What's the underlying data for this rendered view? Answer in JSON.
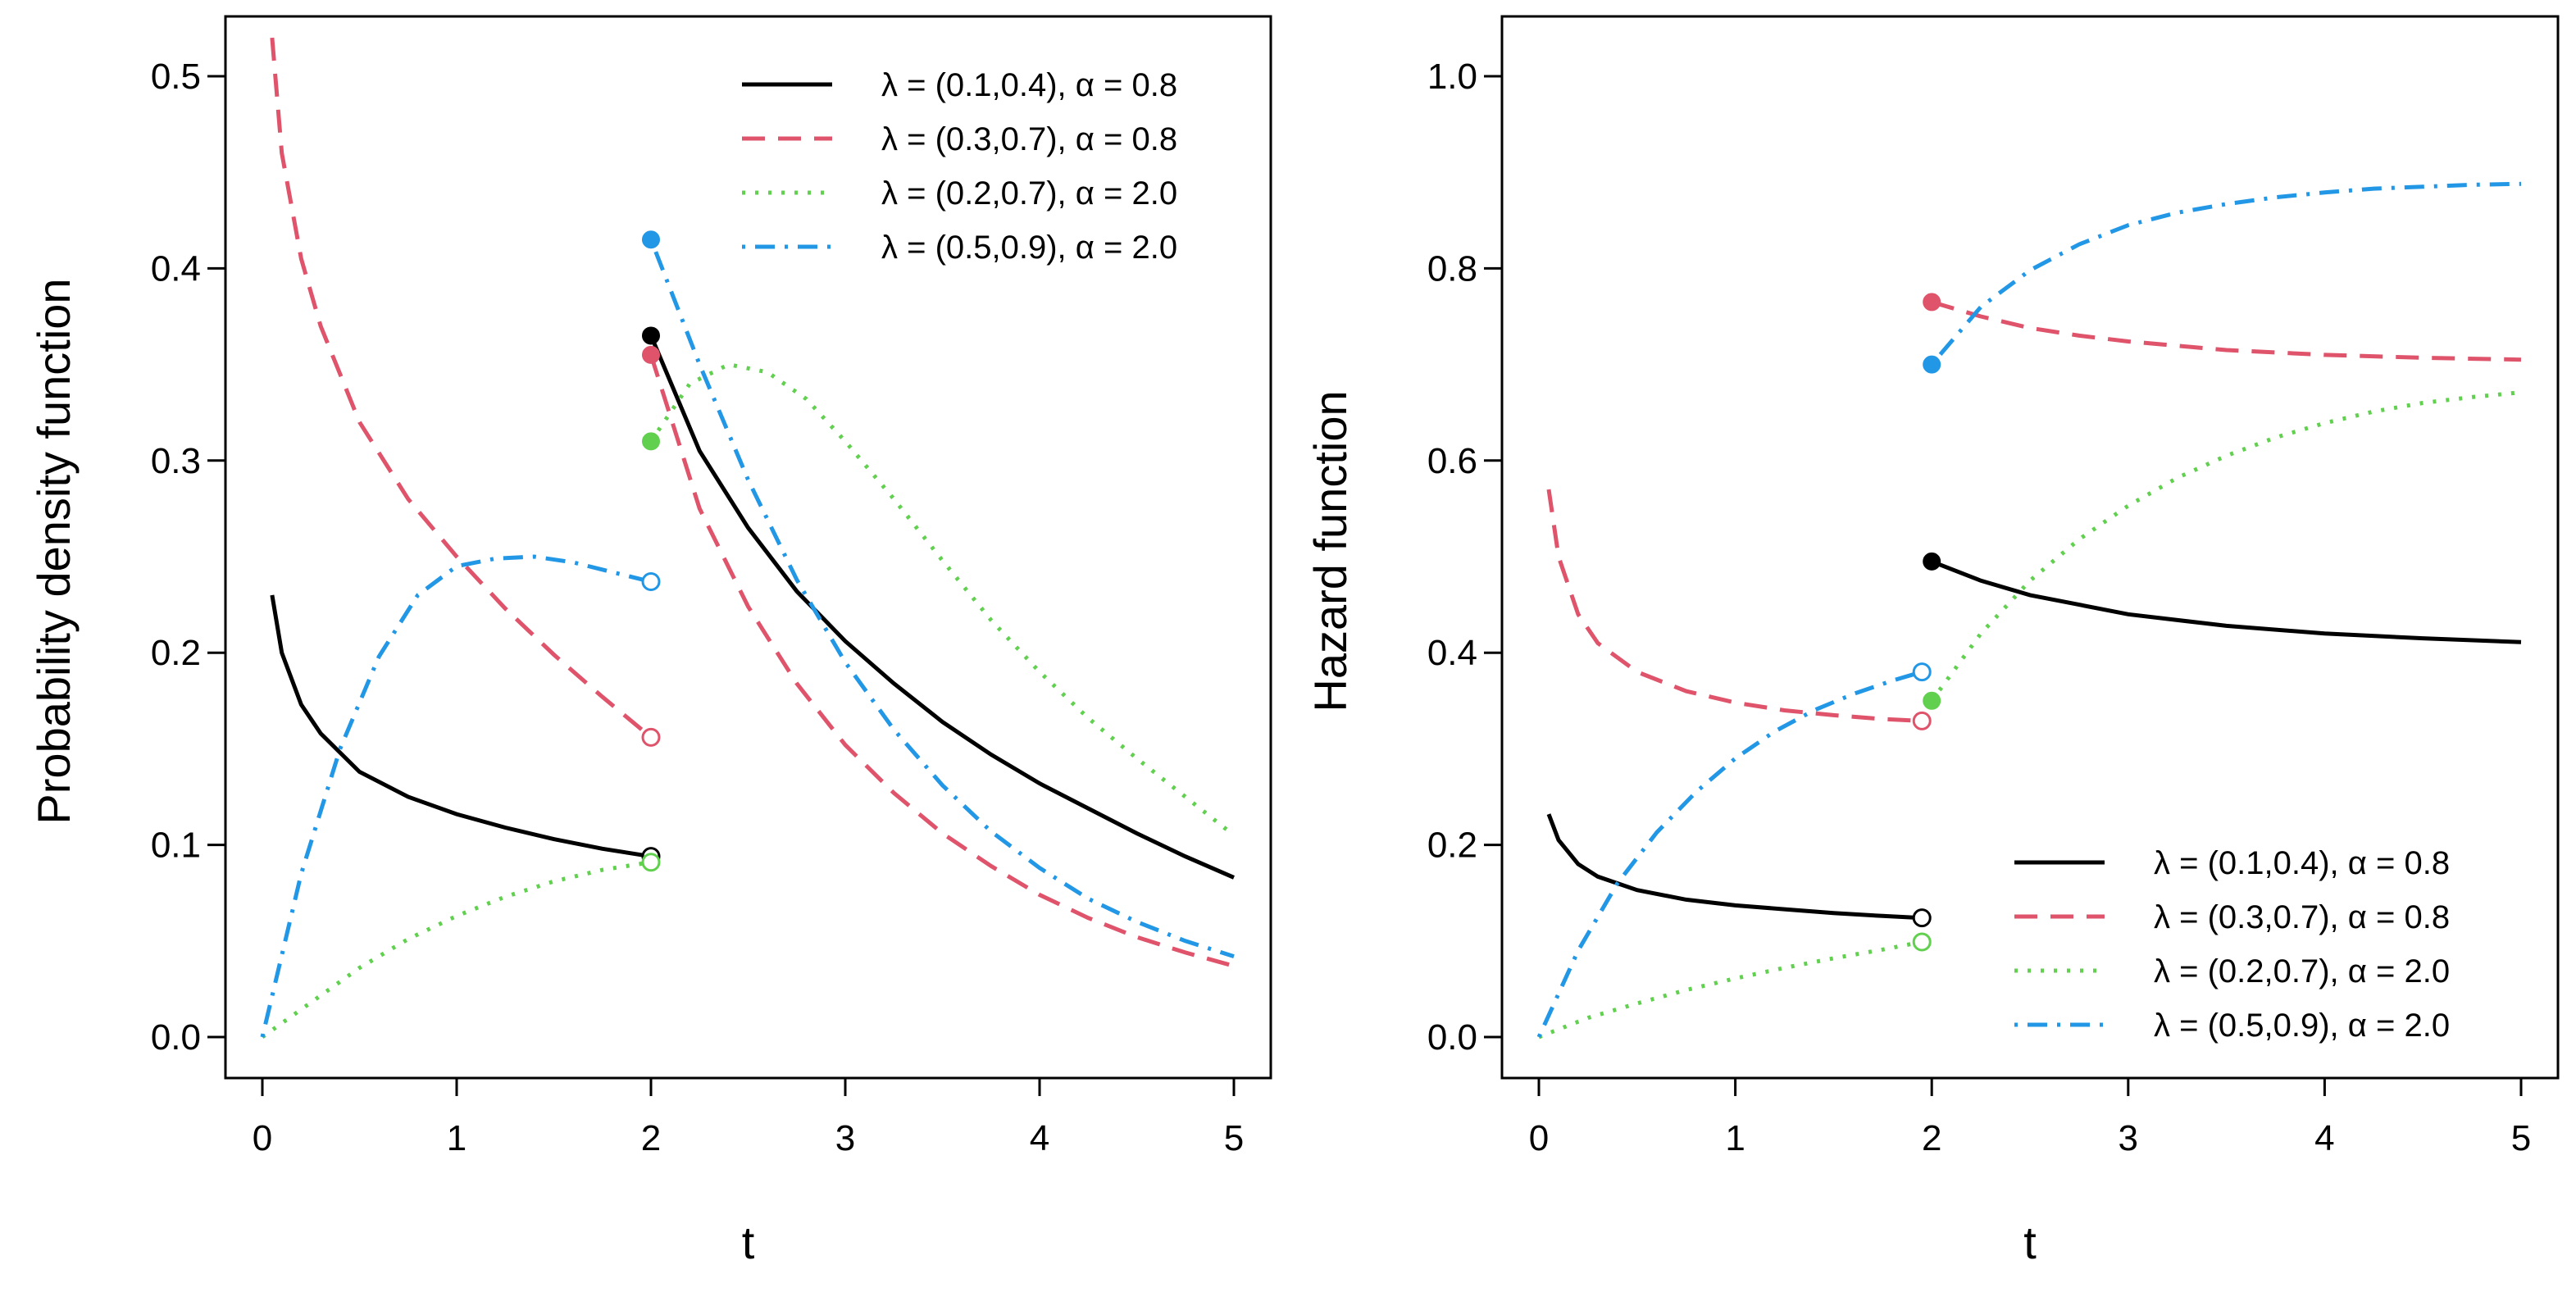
{
  "chart_data": [
    {
      "type": "line",
      "xlabel": "t",
      "ylabel": "Probability density function",
      "xlim": [
        0,
        5
      ],
      "ylim": [
        0,
        0.52
      ],
      "xticks": [
        0,
        1,
        2,
        3,
        4,
        5
      ],
      "yticks": [
        0.0,
        0.1,
        0.2,
        0.3,
        0.4,
        0.5
      ],
      "ytick_labels": [
        "0.0",
        "0.1",
        "0.2",
        "0.3",
        "0.4",
        "0.5"
      ],
      "grid": false,
      "legend_position": "top-right",
      "change_point": 2,
      "series": [
        {
          "name": "λ = (0.1,0.4), α = 0.8",
          "color": "#000000",
          "dash": "solid",
          "segments": [
            {
              "x": [
                0.05,
                0.1,
                0.2,
                0.3,
                0.5,
                0.75,
                1.0,
                1.25,
                1.5,
                1.75,
                2.0
              ],
              "y": [
                0.23,
                0.2,
                0.173,
                0.158,
                0.138,
                0.125,
                0.116,
                0.109,
                0.103,
                0.098,
                0.094
              ]
            },
            {
              "x": [
                2.0,
                2.25,
                2.5,
                2.75,
                3.0,
                3.25,
                3.5,
                3.75,
                4.0,
                4.25,
                4.5,
                4.75,
                5.0
              ],
              "y": [
                0.365,
                0.305,
                0.265,
                0.232,
                0.206,
                0.184,
                0.164,
                0.147,
                0.132,
                0.119,
                0.106,
                0.094,
                0.083
              ]
            }
          ],
          "open_point": [
            2.0,
            0.094
          ],
          "filled_point": [
            2.0,
            0.365
          ]
        },
        {
          "name": "λ = (0.3,0.7), α = 0.8",
          "color": "#df536b",
          "dash": "dashed",
          "segments": [
            {
              "x": [
                0.05,
                0.1,
                0.2,
                0.3,
                0.5,
                0.75,
                1.0,
                1.25,
                1.5,
                1.75,
                2.0
              ],
              "y": [
                0.52,
                0.46,
                0.405,
                0.37,
                0.32,
                0.28,
                0.25,
                0.223,
                0.199,
                0.177,
                0.156
              ]
            },
            {
              "x": [
                2.0,
                2.25,
                2.5,
                2.75,
                3.0,
                3.25,
                3.5,
                3.75,
                4.0,
                4.25,
                4.5,
                4.75,
                5.0
              ],
              "y": [
                0.355,
                0.275,
                0.224,
                0.184,
                0.152,
                0.127,
                0.106,
                0.089,
                0.074,
                0.062,
                0.052,
                0.044,
                0.037
              ]
            }
          ],
          "open_point": [
            2.0,
            0.156
          ],
          "filled_point": [
            2.0,
            0.355
          ]
        },
        {
          "name": "λ = (0.2,0.7), α = 2.0",
          "color": "#61d04f",
          "dash": "dotted",
          "segments": [
            {
              "x": [
                0.0,
                0.25,
                0.5,
                0.75,
                1.0,
                1.25,
                1.5,
                1.75,
                2.0
              ],
              "y": [
                0.0,
                0.018,
                0.036,
                0.051,
                0.063,
                0.073,
                0.081,
                0.087,
                0.091
              ]
            },
            {
              "x": [
                2.0,
                2.2,
                2.4,
                2.6,
                2.8,
                3.0,
                3.25,
                3.5,
                3.75,
                4.0,
                4.25,
                4.5,
                4.75,
                5.0
              ],
              "y": [
                0.31,
                0.34,
                0.35,
                0.346,
                0.332,
                0.31,
                0.28,
                0.248,
                0.217,
                0.19,
                0.166,
                0.145,
                0.125,
                0.105
              ]
            }
          ],
          "open_point": [
            2.0,
            0.091
          ],
          "filled_point": [
            2.0,
            0.31
          ]
        },
        {
          "name": "λ = (0.5,0.9), α = 2.0",
          "color": "#2297e6",
          "dash": "dotdash",
          "segments": [
            {
              "x": [
                0.0,
                0.2,
                0.4,
                0.6,
                0.8,
                1.0,
                1.2,
                1.4,
                1.6,
                1.8,
                2.0
              ],
              "y": [
                0.0,
                0.085,
                0.15,
                0.198,
                0.23,
                0.245,
                0.249,
                0.25,
                0.247,
                0.242,
                0.237
              ]
            },
            {
              "x": [
                2.0,
                2.25,
                2.5,
                2.75,
                3.0,
                3.25,
                3.5,
                3.75,
                4.0,
                4.25,
                4.5,
                4.75,
                5.0
              ],
              "y": [
                0.415,
                0.35,
                0.29,
                0.238,
                0.195,
                0.16,
                0.131,
                0.107,
                0.088,
                0.072,
                0.06,
                0.05,
                0.042
              ]
            }
          ],
          "open_point": [
            2.0,
            0.237
          ],
          "filled_point": [
            2.0,
            0.415
          ]
        }
      ]
    },
    {
      "type": "line",
      "xlabel": "t",
      "ylabel": "Hazard function",
      "xlim": [
        0,
        5
      ],
      "ylim": [
        0,
        1.04
      ],
      "xticks": [
        0,
        1,
        2,
        3,
        4,
        5
      ],
      "yticks": [
        0.0,
        0.2,
        0.4,
        0.6,
        0.8,
        1.0
      ],
      "ytick_labels": [
        "0.0",
        "0.2",
        "0.4",
        "0.6",
        "0.8",
        "1.0"
      ],
      "grid": false,
      "legend_position": "bottom-right",
      "change_point": 2,
      "series": [
        {
          "name": "λ = (0.1,0.4), α = 0.8",
          "color": "#000000",
          "dash": "solid",
          "segments": [
            {
              "x": [
                0.05,
                0.1,
                0.2,
                0.3,
                0.5,
                0.75,
                1.0,
                1.25,
                1.5,
                1.75,
                1.95
              ],
              "y": [
                0.232,
                0.205,
                0.18,
                0.167,
                0.153,
                0.143,
                0.137,
                0.133,
                0.129,
                0.126,
                0.124
              ]
            },
            {
              "x": [
                2.0,
                2.25,
                2.5,
                2.75,
                3.0,
                3.5,
                4.0,
                4.5,
                5.0
              ],
              "y": [
                0.495,
                0.475,
                0.46,
                0.45,
                0.44,
                0.428,
                0.42,
                0.415,
                0.411
              ]
            }
          ],
          "open_point": [
            1.95,
            0.124
          ],
          "filled_point": [
            2.0,
            0.495
          ]
        },
        {
          "name": "λ = (0.3,0.7), α = 0.8",
          "color": "#df536b",
          "dash": "dashed",
          "segments": [
            {
              "x": [
                0.05,
                0.1,
                0.2,
                0.3,
                0.5,
                0.75,
                1.0,
                1.25,
                1.5,
                1.75,
                1.95
              ],
              "y": [
                0.57,
                0.5,
                0.44,
                0.41,
                0.38,
                0.36,
                0.348,
                0.34,
                0.335,
                0.331,
                0.329
              ]
            },
            {
              "x": [
                2.0,
                2.25,
                2.5,
                2.75,
                3.0,
                3.5,
                4.0,
                4.5,
                5.0
              ],
              "y": [
                0.765,
                0.75,
                0.738,
                0.73,
                0.724,
                0.715,
                0.71,
                0.707,
                0.705
              ]
            }
          ],
          "open_point": [
            1.95,
            0.329
          ],
          "filled_point": [
            2.0,
            0.765
          ]
        },
        {
          "name": "λ = (0.2,0.7), α = 2.0",
          "color": "#61d04f",
          "dash": "dotted",
          "segments": [
            {
              "x": [
                0.0,
                0.25,
                0.5,
                0.75,
                1.0,
                1.25,
                1.5,
                1.75,
                1.95
              ],
              "y": [
                0.0,
                0.02,
                0.035,
                0.049,
                0.061,
                0.072,
                0.082,
                0.091,
                0.099
              ]
            },
            {
              "x": [
                2.0,
                2.25,
                2.5,
                2.75,
                3.0,
                3.25,
                3.5,
                3.75,
                4.0,
                4.25,
                4.5,
                4.75,
                5.0
              ],
              "y": [
                0.35,
                0.42,
                0.475,
                0.518,
                0.553,
                0.582,
                0.605,
                0.624,
                0.639,
                0.651,
                0.66,
                0.666,
                0.671
              ]
            }
          ],
          "open_point": [
            1.95,
            0.099
          ],
          "filled_point": [
            2.0,
            0.35
          ]
        },
        {
          "name": "λ = (0.5,0.9), α = 2.0",
          "color": "#2297e6",
          "dash": "dotdash",
          "segments": [
            {
              "x": [
                0.0,
                0.2,
                0.4,
                0.6,
                0.8,
                1.0,
                1.2,
                1.4,
                1.6,
                1.8,
                1.95
              ],
              "y": [
                0.0,
                0.09,
                0.16,
                0.213,
                0.255,
                0.29,
                0.318,
                0.34,
                0.357,
                0.371,
                0.38
              ]
            },
            {
              "x": [
                2.0,
                2.25,
                2.5,
                2.75,
                3.0,
                3.25,
                3.5,
                3.75,
                4.0,
                4.25,
                4.5,
                4.75,
                5.0
              ],
              "y": [
                0.7,
                0.76,
                0.798,
                0.825,
                0.845,
                0.858,
                0.867,
                0.874,
                0.879,
                0.883,
                0.885,
                0.887,
                0.888
              ]
            }
          ],
          "open_point": [
            1.95,
            0.38
          ],
          "filled_point": [
            2.0,
            0.7
          ]
        }
      ]
    }
  ]
}
